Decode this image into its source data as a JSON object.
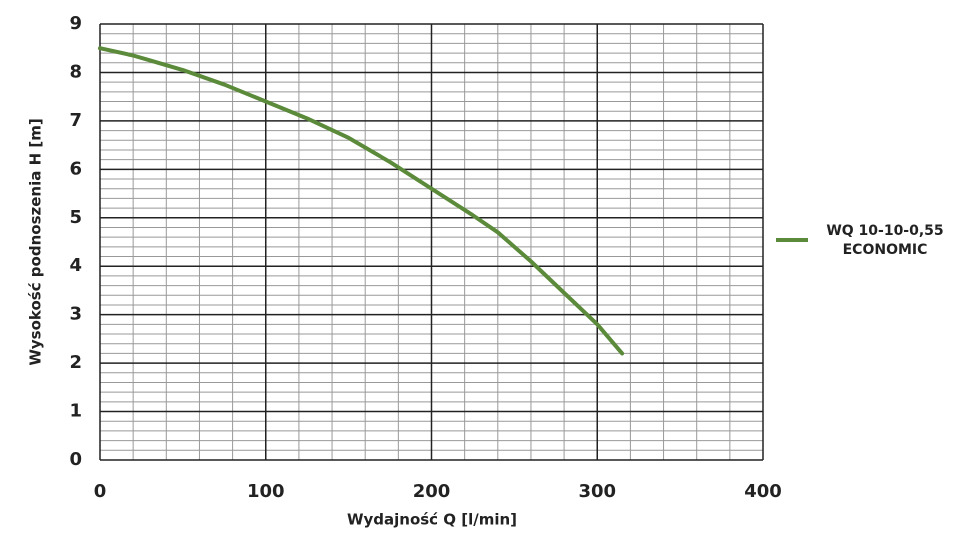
{
  "chart_data": {
    "type": "line",
    "x_label": "Wydajność Q [l/min]",
    "y_label": "Wysokość podnoszenia H [m]",
    "x": [
      0,
      20,
      30,
      50,
      75,
      100,
      125,
      150,
      175,
      200,
      225,
      240,
      260,
      280,
      300,
      315
    ],
    "series": [
      {
        "name": "WQ 10-10-0,55 ECONOMIC",
        "color": "#5a8a3a",
        "values": [
          8.5,
          8.35,
          8.25,
          8.05,
          7.75,
          7.4,
          7.05,
          6.65,
          6.15,
          5.6,
          5.05,
          4.7,
          4.1,
          3.45,
          2.8,
          2.2
        ]
      }
    ],
    "xlim": [
      0,
      400
    ],
    "xticks": [
      0,
      100,
      200,
      300,
      400
    ],
    "ylim": [
      0,
      9
    ],
    "yticks": [
      0,
      1,
      2,
      3,
      4,
      5,
      6,
      7,
      8,
      9
    ],
    "grid": true,
    "minor_grid_divisions": 5,
    "legend": "right"
  }
}
